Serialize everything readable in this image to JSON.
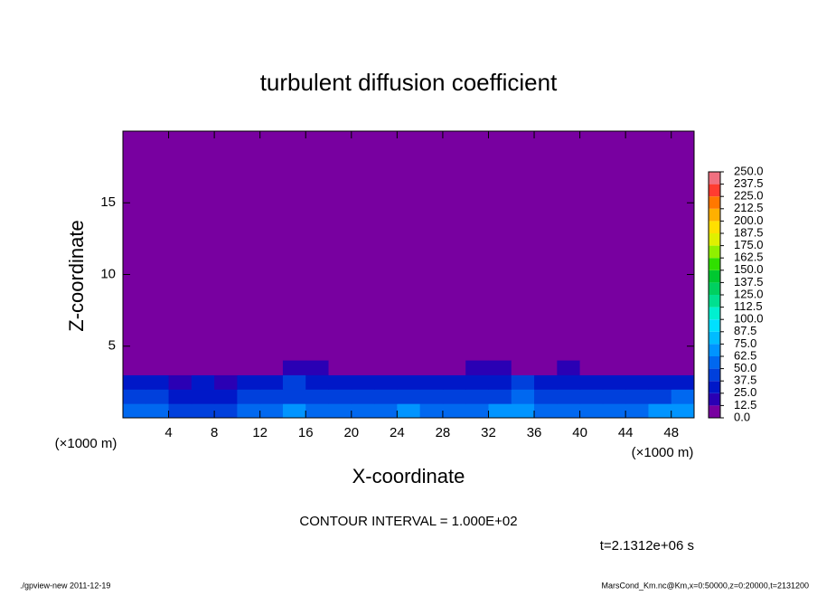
{
  "chart_data": {
    "type": "contour",
    "title": "turbulent diffusion coefficient",
    "xlabel": "X-coordinate",
    "ylabel": "Z-coordinate",
    "x_unit": "(×1000 m)",
    "y_unit": "(×1000 m)",
    "xlim": [
      0,
      50
    ],
    "ylim": [
      0,
      20
    ],
    "xticks": [
      4,
      8,
      12,
      16,
      20,
      24,
      28,
      32,
      36,
      40,
      44,
      48
    ],
    "yticks": [
      5,
      10,
      15
    ],
    "x": [
      1,
      3,
      5,
      7,
      9,
      11,
      13,
      15,
      17,
      19,
      21,
      23,
      25,
      27,
      29,
      31,
      33,
      35,
      37,
      39,
      41,
      43,
      45,
      47,
      49
    ],
    "z": [
      0.5,
      1.5,
      2.5,
      3.5
    ],
    "values": [
      [
        55,
        60,
        45,
        40,
        45,
        50,
        60,
        65,
        55,
        60,
        58,
        62,
        65,
        60,
        55,
        60,
        65,
        70,
        60,
        58,
        55,
        62,
        60,
        65,
        70
      ],
      [
        40,
        42,
        35,
        30,
        32,
        38,
        45,
        48,
        42,
        45,
        40,
        44,
        48,
        46,
        40,
        44,
        48,
        52,
        46,
        42,
        40,
        46,
        44,
        48,
        50
      ],
      [
        30,
        32,
        20,
        25,
        22,
        28,
        35,
        38,
        32,
        35,
        30,
        30,
        34,
        36,
        30,
        32,
        36,
        38,
        35,
        30,
        28,
        32,
        30,
        32,
        34
      ],
      [
        5,
        5,
        5,
        5,
        5,
        5,
        5,
        20,
        22,
        5,
        5,
        5,
        5,
        5,
        5,
        20,
        22,
        5,
        5,
        20,
        5,
        5,
        5,
        5,
        5
      ]
    ],
    "levels": [
      {
        "value": 0,
        "label": "0.0"
      },
      {
        "value": 12.5,
        "label": "12.5"
      },
      {
        "value": 25,
        "label": "25.0"
      },
      {
        "value": 37.5,
        "label": "37.5"
      },
      {
        "value": 50,
        "label": "50.0"
      },
      {
        "value": 62.5,
        "label": "62.5"
      },
      {
        "value": 75,
        "label": "75.0"
      },
      {
        "value": 87.5,
        "label": "87.5"
      },
      {
        "value": 100,
        "label": "100.0"
      },
      {
        "value": 112.5,
        "label": "112.5"
      },
      {
        "value": 125,
        "label": "125.0"
      },
      {
        "value": 137.5,
        "label": "137.5"
      },
      {
        "value": 150,
        "label": "150.0"
      },
      {
        "value": 162.5,
        "label": "162.5"
      },
      {
        "value": 175,
        "label": "175.0"
      },
      {
        "value": 187.5,
        "label": "187.5"
      },
      {
        "value": 200,
        "label": "200.0"
      },
      {
        "value": 212.5,
        "label": "212.5"
      },
      {
        "value": 225,
        "label": "225.0"
      },
      {
        "value": 237.5,
        "label": "237.5"
      },
      {
        "value": 250,
        "label": "250.0"
      }
    ],
    "colors": [
      "#7800a0",
      "#2a00b4",
      "#0018c8",
      "#0040dc",
      "#0068f0",
      "#0094ff",
      "#00bcff",
      "#00e0ff",
      "#00f0d0",
      "#00e090",
      "#00d060",
      "#00c830",
      "#30e000",
      "#90f000",
      "#e0f000",
      "#ffe000",
      "#ffb000",
      "#ff7800",
      "#ff3c30",
      "#f07080"
    ],
    "annotation": "CONTOUR INTERVAL = 1.000E+02",
    "time_label": "t=2.1312e+06 s",
    "footer_left": "./gpview-new   2011-12-19",
    "footer_right": "MarsCond_Km.nc@Km,x=0:50000,z=0:20000,t=2131200"
  }
}
